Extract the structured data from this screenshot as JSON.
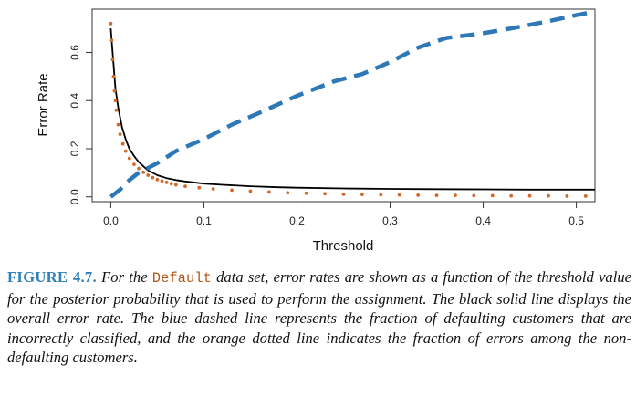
{
  "chart_data": {
    "type": "line",
    "xlabel": "Threshold",
    "ylabel": "Error Rate",
    "xlim": [
      -0.02,
      0.52
    ],
    "ylim": [
      -0.02,
      0.78
    ],
    "xticks": [
      0.0,
      0.1,
      0.2,
      0.3,
      0.4,
      0.5
    ],
    "xtick_labels": [
      "0.0",
      "0.1",
      "0.2",
      "0.3",
      "0.4",
      "0.5"
    ],
    "yticks": [
      0.0,
      0.2,
      0.4,
      0.6
    ],
    "ytick_labels": [
      "0.0",
      "0.2",
      "0.4",
      "0.6"
    ],
    "grid": false,
    "legend": "none",
    "series": [
      {
        "style": "solid",
        "color": "#000000",
        "x": [
          0.0,
          0.002,
          0.005,
          0.008,
          0.012,
          0.016,
          0.02,
          0.025,
          0.03,
          0.04,
          0.05,
          0.06,
          0.07,
          0.08,
          0.1,
          0.12,
          0.15,
          0.18,
          0.2,
          0.25,
          0.3,
          0.35,
          0.4,
          0.45,
          0.5,
          0.52
        ],
        "y": [
          0.7,
          0.6,
          0.45,
          0.37,
          0.29,
          0.24,
          0.2,
          0.17,
          0.145,
          0.11,
          0.09,
          0.078,
          0.07,
          0.064,
          0.055,
          0.05,
          0.044,
          0.04,
          0.038,
          0.035,
          0.033,
          0.032,
          0.031,
          0.03,
          0.03,
          0.03
        ]
      },
      {
        "style": "dashed",
        "color": "#2f78b8",
        "x": [
          0.0,
          0.01,
          0.02,
          0.03,
          0.05,
          0.07,
          0.1,
          0.13,
          0.16,
          0.2,
          0.24,
          0.27,
          0.3,
          0.33,
          0.36,
          0.4,
          0.43,
          0.47,
          0.5,
          0.52
        ],
        "y": [
          0.0,
          0.03,
          0.07,
          0.1,
          0.14,
          0.19,
          0.24,
          0.3,
          0.35,
          0.42,
          0.48,
          0.51,
          0.56,
          0.62,
          0.66,
          0.68,
          0.7,
          0.73,
          0.755,
          0.77
        ]
      },
      {
        "style": "dotted",
        "color": "#d2692a",
        "x": [
          0.0,
          0.001,
          0.002,
          0.003,
          0.004,
          0.005,
          0.006,
          0.008,
          0.01,
          0.013,
          0.016,
          0.02,
          0.025,
          0.03,
          0.035,
          0.04,
          0.045,
          0.05,
          0.055,
          0.06,
          0.065,
          0.07,
          0.08,
          0.095,
          0.11,
          0.13,
          0.15,
          0.17,
          0.19,
          0.21,
          0.23,
          0.25,
          0.27,
          0.29,
          0.31,
          0.33,
          0.35,
          0.37,
          0.39,
          0.41,
          0.43,
          0.45,
          0.47,
          0.49,
          0.51
        ],
        "y": [
          0.72,
          0.65,
          0.57,
          0.5,
          0.44,
          0.4,
          0.36,
          0.3,
          0.26,
          0.22,
          0.19,
          0.16,
          0.135,
          0.118,
          0.102,
          0.09,
          0.08,
          0.072,
          0.066,
          0.06,
          0.055,
          0.05,
          0.044,
          0.038,
          0.033,
          0.028,
          0.024,
          0.02,
          0.017,
          0.015,
          0.013,
          0.011,
          0.01,
          0.009,
          0.008,
          0.007,
          0.006,
          0.006,
          0.005,
          0.005,
          0.004,
          0.004,
          0.004,
          0.003,
          0.003
        ]
      }
    ]
  },
  "caption": {
    "label": "FIGURE 4.7.",
    "part1": " For the ",
    "code": "Default",
    "part2": " data set, error rates are shown as a function of the threshold value for the posterior probability that is used to perform the assignment. The black solid line displays the overall error rate. The blue dashed line represents the fraction of defaulting customers that are incorrectly classified, and the orange dotted line indicates the fraction of errors among the non-defaulting customers."
  }
}
